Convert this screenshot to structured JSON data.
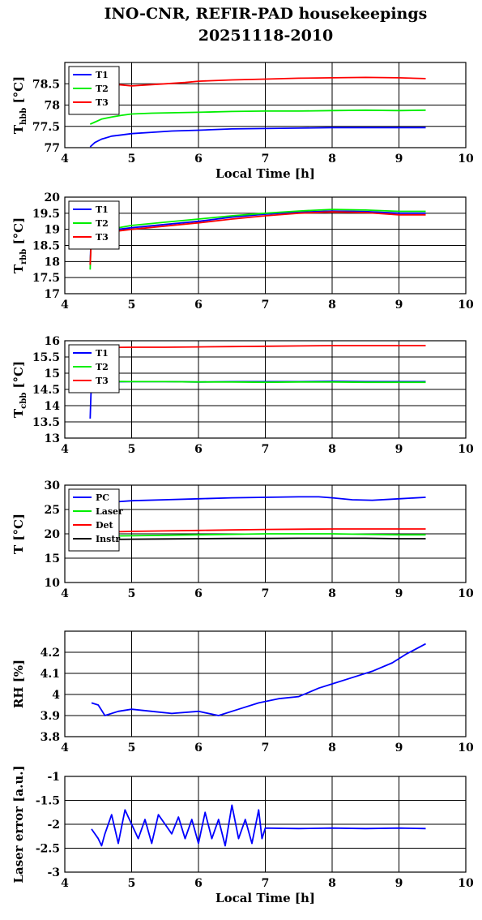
{
  "title": {
    "line1": "INO-CNR, REFIR-PAD housekeepings",
    "line2": "20251118-2010"
  },
  "chart_data": [
    {
      "type": "line",
      "ylabel": "T",
      "ylabel_sub": "hbb",
      "ylabel_unit": " [°C]",
      "xlabel": "Local Time [h]",
      "xlim": [
        4,
        10
      ],
      "ylim": [
        77,
        79
      ],
      "xticks": [
        4,
        5,
        6,
        7,
        8,
        9,
        10
      ],
      "yticks": [
        77,
        77.5,
        78,
        78.5
      ],
      "ytick_labels": [
        "77",
        "77.5",
        "78",
        "78.5"
      ],
      "grid": true,
      "legend_position": "top-left",
      "series": [
        {
          "name": "T1",
          "color": "#0000ff",
          "x": [
            4.38,
            4.45,
            4.55,
            4.7,
            4.85,
            5.0,
            5.3,
            5.6,
            6.0,
            6.5,
            7.0,
            7.5,
            8.0,
            8.5,
            9.0,
            9.4
          ],
          "y": [
            77.02,
            77.12,
            77.2,
            77.27,
            77.3,
            77.33,
            77.36,
            77.39,
            77.41,
            77.44,
            77.45,
            77.46,
            77.47,
            77.47,
            77.47,
            77.47
          ]
        },
        {
          "name": "T2",
          "color": "#00ee00",
          "x": [
            4.38,
            4.45,
            4.55,
            4.7,
            4.85,
            5.0,
            5.3,
            5.6,
            6.0,
            6.5,
            7.0,
            7.5,
            8.0,
            8.5,
            9.0,
            9.4
          ],
          "y": [
            77.55,
            77.6,
            77.67,
            77.72,
            77.76,
            77.79,
            77.81,
            77.82,
            77.83,
            77.85,
            77.86,
            77.86,
            77.87,
            77.88,
            77.87,
            77.88
          ]
        },
        {
          "name": "T3",
          "color": "#ff0000",
          "x": [
            4.4,
            4.6,
            4.8,
            5.0,
            5.2,
            5.5,
            5.8,
            6.0,
            6.5,
            7.0,
            7.5,
            8.0,
            8.5,
            9.0,
            9.4
          ],
          "y": [
            78.55,
            78.52,
            78.48,
            78.45,
            78.47,
            78.5,
            78.53,
            78.56,
            78.59,
            78.61,
            78.63,
            78.64,
            78.65,
            78.64,
            78.62
          ]
        }
      ]
    },
    {
      "type": "line",
      "ylabel": "T",
      "ylabel_sub": "rbb",
      "ylabel_unit": " [°C]",
      "xlabel": "",
      "xlim": [
        4,
        10
      ],
      "ylim": [
        17,
        20
      ],
      "xticks": [
        4,
        5,
        6,
        7,
        8,
        9,
        10
      ],
      "yticks": [
        17,
        17.5,
        18,
        18.5,
        19,
        19.5,
        20
      ],
      "ytick_labels": [
        "17",
        "17.5",
        "18",
        "18.5",
        "19",
        "19.5",
        "20"
      ],
      "grid": true,
      "legend_position": "top-left",
      "series": [
        {
          "name": "T1",
          "color": "#0000ff",
          "x": [
            4.38,
            4.39,
            4.4,
            4.5,
            4.8,
            5.0,
            5.5,
            6.0,
            6.5,
            7.0,
            7.5,
            8.0,
            8.5,
            9.0,
            9.4
          ],
          "y": [
            17.9,
            18.6,
            18.85,
            18.92,
            19.0,
            19.05,
            19.15,
            19.25,
            19.38,
            19.47,
            19.53,
            19.57,
            19.55,
            19.5,
            19.5
          ]
        },
        {
          "name": "T2",
          "color": "#00ee00",
          "x": [
            4.38,
            4.39,
            4.4,
            4.5,
            4.8,
            5.0,
            5.5,
            6.0,
            6.5,
            7.0,
            7.5,
            8.0,
            8.5,
            9.0,
            9.4
          ],
          "y": [
            17.75,
            18.5,
            18.9,
            18.98,
            19.05,
            19.12,
            19.22,
            19.32,
            19.42,
            19.5,
            19.57,
            19.62,
            19.6,
            19.56,
            19.56
          ]
        },
        {
          "name": "T3",
          "color": "#ff0000",
          "x": [
            4.38,
            4.39,
            4.4,
            4.5,
            4.8,
            5.0,
            5.5,
            6.0,
            6.5,
            7.0,
            7.5,
            8.0,
            8.5,
            9.0,
            9.4
          ],
          "y": [
            17.9,
            18.4,
            18.85,
            18.9,
            18.95,
            19.0,
            19.1,
            19.2,
            19.32,
            19.42,
            19.5,
            19.54,
            19.52,
            19.45,
            19.45
          ]
        }
      ]
    },
    {
      "type": "line",
      "ylabel": "T",
      "ylabel_sub": "cbb",
      "ylabel_unit": " [°C]",
      "xlabel": "",
      "xlim": [
        4,
        10
      ],
      "ylim": [
        13,
        16
      ],
      "xticks": [
        4,
        5,
        6,
        7,
        8,
        9,
        10
      ],
      "yticks": [
        13,
        13.5,
        14,
        14.5,
        15,
        15.5,
        16
      ],
      "ytick_labels": [
        "13",
        "13.5",
        "14",
        "14.5",
        "15",
        "15.5",
        "16"
      ],
      "grid": true,
      "legend_position": "top-left",
      "series": [
        {
          "name": "T1",
          "color": "#0000ff",
          "x": [
            4.38,
            4.39,
            4.4,
            4.5,
            5.0,
            5.5,
            6.0,
            6.5,
            7.0,
            7.5,
            8.0,
            8.5,
            9.0,
            9.4
          ],
          "y": [
            13.6,
            14.3,
            14.7,
            14.73,
            14.74,
            14.74,
            14.73,
            14.74,
            14.74,
            14.74,
            14.75,
            14.74,
            14.74,
            14.74
          ]
        },
        {
          "name": "T2",
          "color": "#00ee00",
          "x": [
            4.4,
            4.5,
            5.0,
            5.5,
            6.0,
            6.5,
            7.0,
            7.5,
            8.0,
            8.5,
            9.0,
            9.4
          ],
          "y": [
            14.76,
            14.75,
            14.74,
            14.74,
            14.73,
            14.73,
            14.72,
            14.73,
            14.73,
            14.72,
            14.72,
            14.72
          ]
        },
        {
          "name": "T3",
          "color": "#ff0000",
          "x": [
            4.4,
            4.5,
            5.0,
            5.5,
            6.0,
            6.5,
            7.0,
            7.5,
            8.0,
            8.5,
            9.0,
            9.4
          ],
          "y": [
            15.78,
            15.79,
            15.8,
            15.8,
            15.81,
            15.82,
            15.83,
            15.84,
            15.85,
            15.85,
            15.85,
            15.85
          ]
        }
      ]
    },
    {
      "type": "line",
      "ylabel": "T [°C]",
      "ylabel_sub": "",
      "ylabel_unit": "",
      "xlabel": "",
      "xlim": [
        4,
        10
      ],
      "ylim": [
        10,
        30
      ],
      "xticks": [
        4,
        5,
        6,
        7,
        8,
        9,
        10
      ],
      "yticks": [
        10,
        15,
        20,
        25,
        30
      ],
      "ytick_labels": [
        "10",
        "15",
        "20",
        "25",
        "30"
      ],
      "grid": true,
      "legend_position": "top-left",
      "series": [
        {
          "name": "PC",
          "color": "#0000ff",
          "x": [
            4.4,
            4.8,
            5.0,
            5.5,
            6.0,
            6.5,
            7.0,
            7.5,
            7.8,
            8.0,
            8.3,
            8.6,
            9.0,
            9.4
          ],
          "y": [
            26.4,
            26.6,
            26.8,
            27.0,
            27.2,
            27.4,
            27.5,
            27.6,
            27.6,
            27.4,
            27.0,
            26.9,
            27.2,
            27.5
          ]
        },
        {
          "name": "Laser",
          "color": "#00ee00",
          "x": [
            4.4,
            5.0,
            5.5,
            6.0,
            6.5,
            7.0,
            7.5,
            8.0,
            8.5,
            9.0,
            9.4
          ],
          "y": [
            19.5,
            19.6,
            19.7,
            19.8,
            19.9,
            20.0,
            20.0,
            20.0,
            19.9,
            19.8,
            19.8
          ]
        },
        {
          "name": "Det",
          "color": "#ff0000",
          "x": [
            4.4,
            5.0,
            5.5,
            6.0,
            6.5,
            7.0,
            7.5,
            8.0,
            8.5,
            9.0,
            9.4
          ],
          "y": [
            20.3,
            20.5,
            20.6,
            20.7,
            20.8,
            20.9,
            20.95,
            21.0,
            21.0,
            21.0,
            21.0
          ]
        },
        {
          "name": "Instr",
          "color": "#000000",
          "x": [
            4.4,
            5.0,
            5.5,
            6.0,
            6.5,
            7.0,
            7.5,
            8.0,
            8.5,
            9.0,
            9.4
          ],
          "y": [
            18.8,
            18.9,
            18.95,
            19.0,
            19.05,
            19.05,
            19.1,
            19.1,
            19.1,
            19.0,
            19.0
          ]
        }
      ]
    },
    {
      "type": "line",
      "ylabel": "RH [%]",
      "ylabel_sub": "",
      "ylabel_unit": "",
      "xlabel": "",
      "xlim": [
        4,
        10
      ],
      "ylim": [
        3.8,
        4.3
      ],
      "xticks": [
        4,
        5,
        6,
        7,
        8,
        9,
        10
      ],
      "yticks": [
        3.8,
        3.9,
        4.0,
        4.1,
        4.2
      ],
      "ytick_labels": [
        "3.8",
        "3.9",
        "4",
        "4.1",
        "4.2"
      ],
      "grid": true,
      "legend_position": "",
      "series": [
        {
          "name": "",
          "color": "#0000ff",
          "x": [
            4.4,
            4.5,
            4.6,
            4.8,
            5.0,
            5.3,
            5.6,
            6.0,
            6.3,
            6.6,
            6.9,
            7.2,
            7.5,
            7.8,
            8.0,
            8.3,
            8.6,
            8.9,
            9.1,
            9.4
          ],
          "y": [
            3.96,
            3.95,
            3.9,
            3.92,
            3.93,
            3.92,
            3.91,
            3.92,
            3.9,
            3.93,
            3.96,
            3.98,
            3.99,
            4.03,
            4.05,
            4.08,
            4.11,
            4.15,
            4.19,
            4.24
          ]
        }
      ]
    },
    {
      "type": "line",
      "ylabel": "Laser error [a.u.]",
      "ylabel_sub": "",
      "ylabel_unit": "",
      "xlabel": "Local Time [h]",
      "xlim": [
        4,
        10
      ],
      "ylim": [
        -3,
        -1
      ],
      "xticks": [
        4,
        5,
        6,
        7,
        8,
        9,
        10
      ],
      "yticks": [
        -3,
        -2.5,
        -2,
        -1.5,
        -1
      ],
      "ytick_labels": [
        "-3",
        "-2.5",
        "-2",
        "-1.5",
        "-1"
      ],
      "grid": true,
      "legend_position": "",
      "series": [
        {
          "name": "",
          "color": "#0000ff",
          "x": [
            4.4,
            4.5,
            4.55,
            4.6,
            4.7,
            4.8,
            4.9,
            5.0,
            5.1,
            5.2,
            5.3,
            5.4,
            5.5,
            5.6,
            5.7,
            5.8,
            5.9,
            6.0,
            6.1,
            6.2,
            6.3,
            6.4,
            6.5,
            6.6,
            6.7,
            6.8,
            6.9,
            6.95,
            7.0,
            7.5,
            8.0,
            8.5,
            9.0,
            9.4
          ],
          "y": [
            -2.1,
            -2.3,
            -2.45,
            -2.2,
            -1.8,
            -2.4,
            -1.7,
            -2.0,
            -2.3,
            -1.9,
            -2.4,
            -1.8,
            -2.0,
            -2.2,
            -1.85,
            -2.3,
            -1.9,
            -2.4,
            -1.75,
            -2.3,
            -1.9,
            -2.45,
            -1.6,
            -2.3,
            -1.9,
            -2.4,
            -1.7,
            -2.3,
            -2.08,
            -2.09,
            -2.08,
            -2.09,
            -2.08,
            -2.09
          ]
        }
      ]
    }
  ]
}
